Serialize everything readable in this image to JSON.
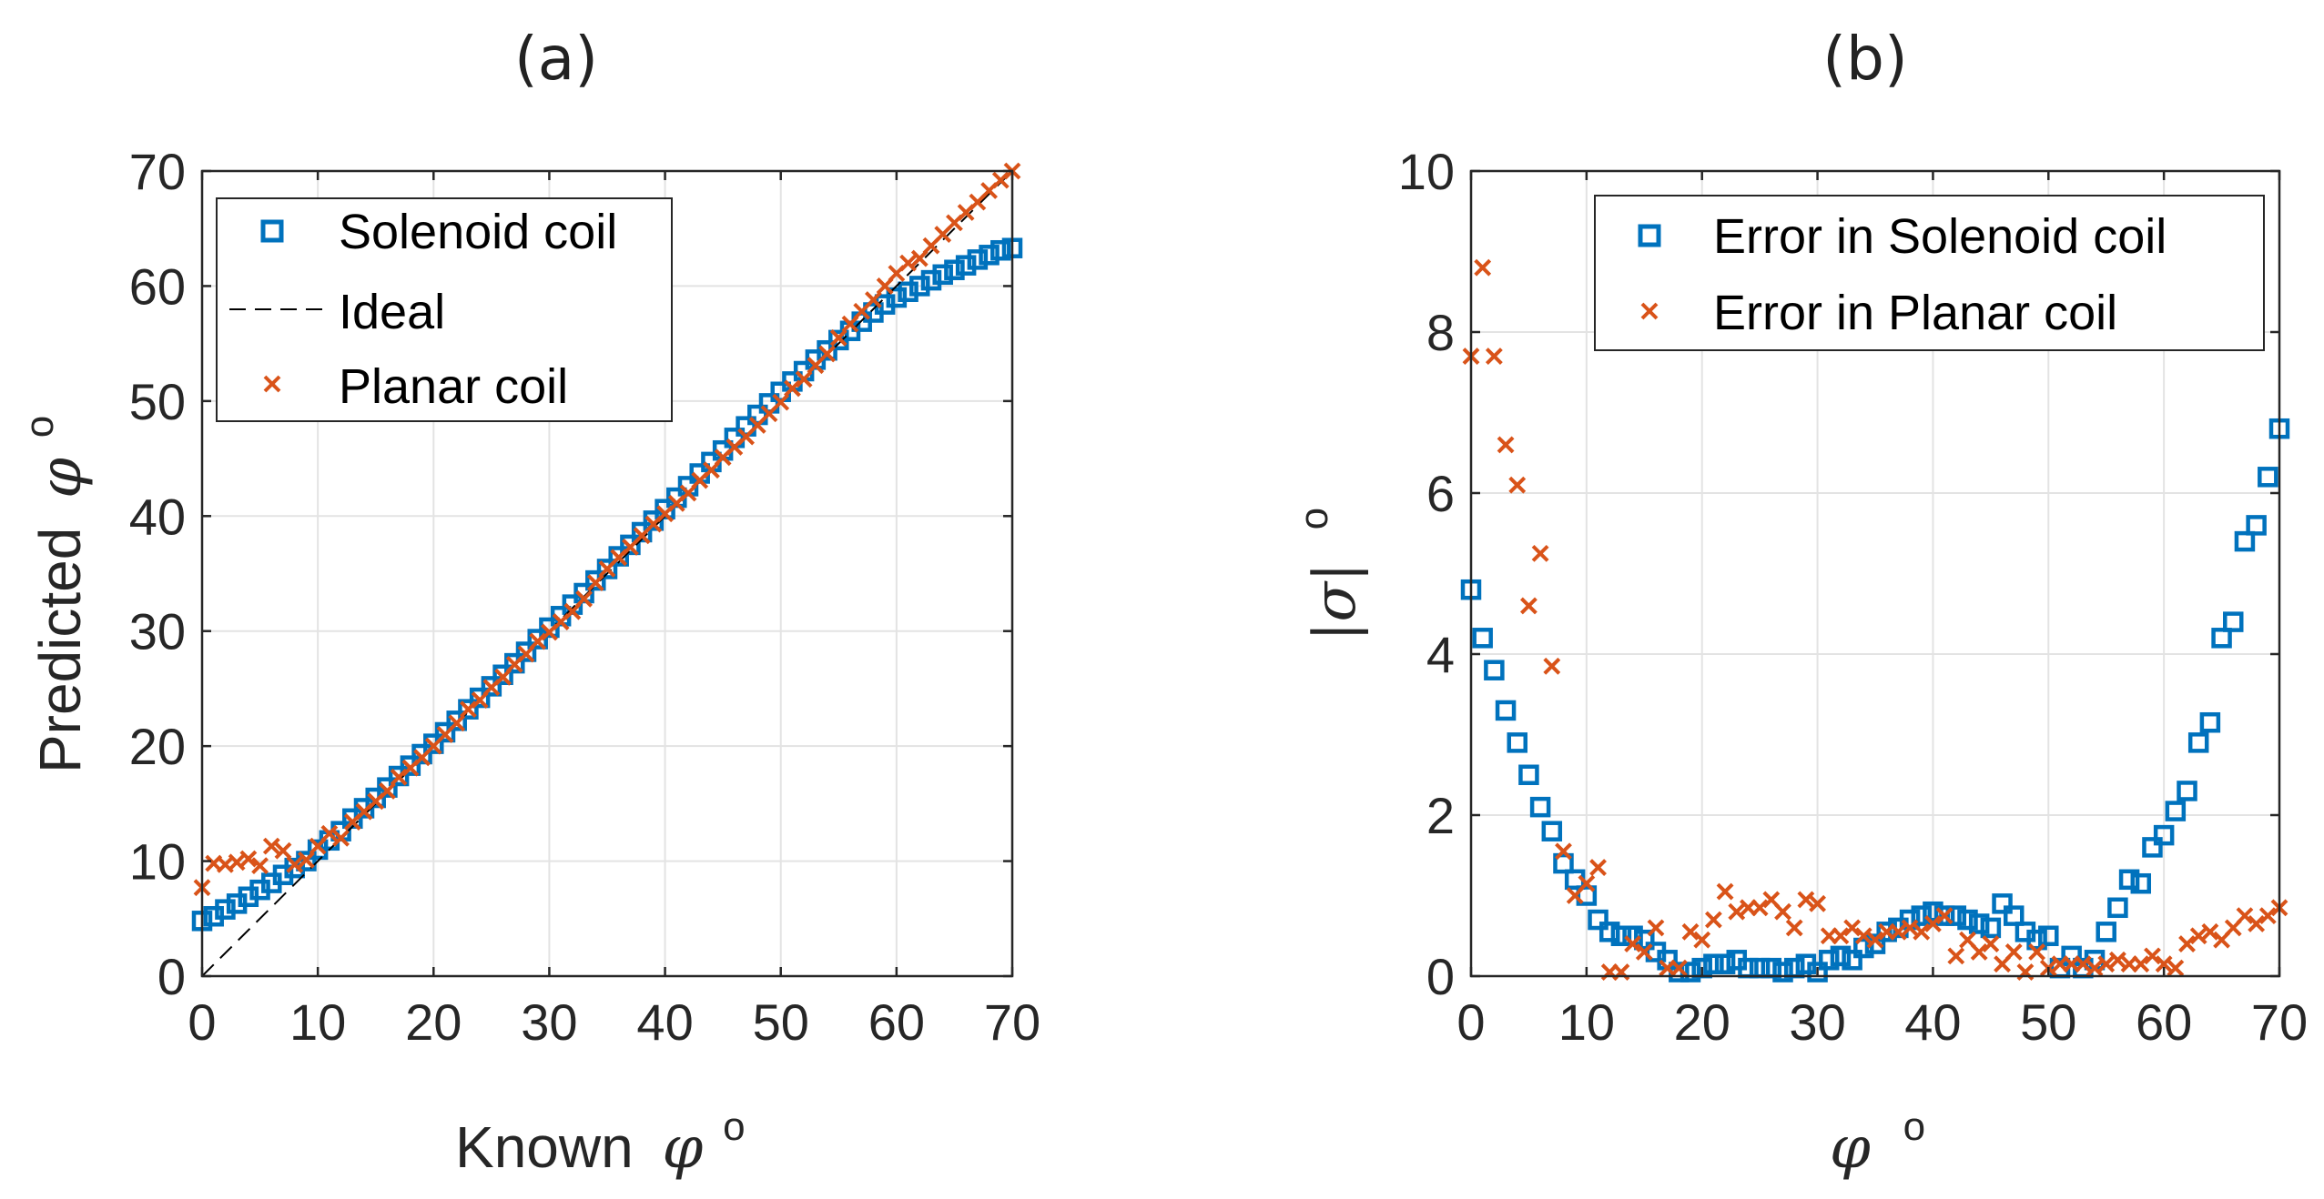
{
  "chart_data": [
    {
      "type": "scatter",
      "panel": "(a)",
      "title": "(a)",
      "xlabel": "Known",
      "xlabel_symbol": "φ",
      "xlabel_sup": "o",
      "ylabel": "Predicted",
      "ylabel_symbol": "φ",
      "ylabel_sup": "o",
      "xlim": [
        0,
        70
      ],
      "ylim": [
        0,
        70
      ],
      "xticks": [
        0,
        10,
        20,
        30,
        40,
        50,
        60,
        70
      ],
      "yticks": [
        0,
        10,
        20,
        30,
        40,
        50,
        60,
        70
      ],
      "grid": true,
      "legend_position": "top-left",
      "legend": [
        "Solenoid coil",
        "Ideal",
        "Planar coil"
      ],
      "series": [
        {
          "name": "Solenoid coil",
          "marker": "square",
          "color": "#0072BD",
          "x": [
            0,
            1,
            2,
            3,
            4,
            5,
            6,
            7,
            8,
            9,
            10,
            11,
            12,
            13,
            14,
            15,
            16,
            17,
            18,
            19,
            20,
            21,
            22,
            23,
            24,
            25,
            26,
            27,
            28,
            29,
            30,
            31,
            32,
            33,
            34,
            35,
            36,
            37,
            38,
            39,
            40,
            41,
            42,
            43,
            44,
            45,
            46,
            47,
            48,
            49,
            50,
            51,
            52,
            53,
            54,
            55,
            56,
            57,
            58,
            59,
            60,
            61,
            62,
            63,
            64,
            65,
            66,
            67,
            68,
            69,
            70
          ],
          "y": [
            4.8,
            5.2,
            5.8,
            6.3,
            6.9,
            7.5,
            8.1,
            8.8,
            9.4,
            10.0,
            11.0,
            11.8,
            12.6,
            13.7,
            14.6,
            15.5,
            16.4,
            17.4,
            18.3,
            19.3,
            20.2,
            21.2,
            22.2,
            23.2,
            24.2,
            25.2,
            26.2,
            27.2,
            28.2,
            29.3,
            30.3,
            31.3,
            32.3,
            33.3,
            34.4,
            35.4,
            36.5,
            37.5,
            38.6,
            39.6,
            40.6,
            41.6,
            42.6,
            43.7,
            44.7,
            45.7,
            46.8,
            47.8,
            48.8,
            49.8,
            50.8,
            51.7,
            52.6,
            53.6,
            54.4,
            55.3,
            56.1,
            56.9,
            57.7,
            58.4,
            59.0,
            59.5,
            60.0,
            60.5,
            61.0,
            61.4,
            61.8,
            62.3,
            62.7,
            63.1,
            63.3
          ]
        },
        {
          "name": "Ideal",
          "marker": "dashed-line",
          "color": "#000000",
          "x": [
            0,
            70
          ],
          "y": [
            0,
            70
          ]
        },
        {
          "name": "Planar coil",
          "marker": "x",
          "color": "#D95319",
          "x": [
            0,
            1,
            2,
            3,
            4,
            5,
            6,
            7,
            8,
            9,
            10,
            11,
            12,
            13,
            14,
            15,
            16,
            17,
            18,
            19,
            20,
            21,
            22,
            23,
            24,
            25,
            26,
            27,
            28,
            29,
            30,
            31,
            32,
            33,
            34,
            35,
            36,
            37,
            38,
            39,
            40,
            41,
            42,
            43,
            44,
            45,
            46,
            47,
            48,
            49,
            50,
            51,
            52,
            53,
            54,
            55,
            56,
            57,
            58,
            59,
            60,
            61,
            62,
            63,
            64,
            65,
            66,
            67,
            68,
            69,
            70
          ],
          "y": [
            7.7,
            9.8,
            9.7,
            9.9,
            10.2,
            9.6,
            11.3,
            10.9,
            9.7,
            10.1,
            11.3,
            12.4,
            12.0,
            13.4,
            14.3,
            15.2,
            16.1,
            17.3,
            18.1,
            19.0,
            20.0,
            21.0,
            22.0,
            23.2,
            24.0,
            25.1,
            26.0,
            27.1,
            28.0,
            29.1,
            29.9,
            30.8,
            31.7,
            32.8,
            34.2,
            35.4,
            36.4,
            37.3,
            38.3,
            39.3,
            40.2,
            41.1,
            42.0,
            43.1,
            44.0,
            45.1,
            46.0,
            46.9,
            47.9,
            48.9,
            49.9,
            51.1,
            51.9,
            53.1,
            54.1,
            55.5,
            56.7,
            57.8,
            58.8,
            60.0,
            61.1,
            62.0,
            62.4,
            63.5,
            64.5,
            65.5,
            66.4,
            67.3,
            68.3,
            69.2,
            70.0
          ]
        }
      ]
    },
    {
      "type": "scatter",
      "panel": "(b)",
      "title": "(b)",
      "xlabel": "",
      "xlabel_symbol": "φ",
      "xlabel_sup": "o",
      "ylabel": "",
      "ylabel_symbol": "|σ|",
      "ylabel_sup": "o",
      "xlim": [
        0,
        70
      ],
      "ylim": [
        0,
        10
      ],
      "xticks": [
        0,
        10,
        20,
        30,
        40,
        50,
        60,
        70
      ],
      "yticks": [
        0,
        2,
        4,
        6,
        8,
        10
      ],
      "grid": true,
      "legend_position": "top-right",
      "legend": [
        "Error in Solenoid coil",
        "Error in Planar coil"
      ],
      "series": [
        {
          "name": "Error in Solenoid coil",
          "marker": "square",
          "color": "#0072BD",
          "x": [
            0,
            1,
            2,
            3,
            4,
            5,
            6,
            7,
            8,
            9,
            10,
            11,
            12,
            13,
            14,
            15,
            16,
            17,
            18,
            19,
            20,
            21,
            22,
            23,
            24,
            25,
            26,
            27,
            28,
            29,
            30,
            31,
            32,
            33,
            34,
            35,
            36,
            37,
            38,
            39,
            40,
            41,
            42,
            43,
            44,
            45,
            46,
            47,
            48,
            49,
            50,
            51,
            52,
            53,
            54,
            55,
            56,
            57,
            58,
            59,
            60,
            61,
            62,
            63,
            64,
            65,
            66,
            67,
            68,
            69,
            70
          ],
          "y": [
            4.8,
            4.2,
            3.8,
            3.3,
            2.9,
            2.5,
            2.1,
            1.8,
            1.4,
            1.2,
            1.0,
            0.7,
            0.55,
            0.5,
            0.5,
            0.45,
            0.3,
            0.2,
            0.05,
            0.05,
            0.1,
            0.15,
            0.15,
            0.2,
            0.1,
            0.1,
            0.1,
            0.05,
            0.1,
            0.15,
            0.05,
            0.2,
            0.25,
            0.2,
            0.35,
            0.4,
            0.55,
            0.6,
            0.7,
            0.75,
            0.8,
            0.75,
            0.75,
            0.7,
            0.65,
            0.6,
            0.9,
            0.75,
            0.55,
            0.45,
            0.5,
            0.1,
            0.25,
            0.1,
            0.2,
            0.55,
            0.85,
            1.2,
            1.15,
            1.6,
            1.75,
            2.05,
            2.3,
            2.9,
            3.15,
            4.2,
            4.4,
            5.4,
            5.6,
            6.2,
            6.8
          ]
        },
        {
          "name": "Error in Planar coil",
          "marker": "x",
          "color": "#D95319",
          "x": [
            0,
            1,
            2,
            3,
            4,
            5,
            6,
            7,
            8,
            9,
            10,
            11,
            12,
            13,
            14,
            15,
            16,
            17,
            18,
            19,
            20,
            21,
            22,
            23,
            24,
            25,
            26,
            27,
            28,
            29,
            30,
            31,
            32,
            33,
            34,
            35,
            36,
            37,
            38,
            39,
            40,
            41,
            42,
            43,
            44,
            45,
            46,
            47,
            48,
            49,
            50,
            51,
            52,
            53,
            54,
            55,
            56,
            57,
            58,
            59,
            60,
            61,
            62,
            63,
            64,
            65,
            66,
            67,
            68,
            69,
            70
          ],
          "y": [
            7.7,
            8.8,
            7.7,
            6.6,
            6.1,
            4.6,
            5.25,
            3.85,
            1.55,
            1.0,
            1.15,
            1.35,
            0.05,
            0.05,
            0.4,
            0.3,
            0.6,
            0.1,
            0.1,
            0.55,
            0.45,
            0.7,
            1.05,
            0.8,
            0.85,
            0.85,
            0.95,
            0.8,
            0.6,
            0.95,
            0.9,
            0.5,
            0.5,
            0.6,
            0.5,
            0.45,
            0.55,
            0.55,
            0.6,
            0.55,
            0.65,
            0.75,
            0.25,
            0.45,
            0.3,
            0.4,
            0.15,
            0.3,
            0.05,
            0.3,
            0.1,
            0.15,
            0.15,
            0.15,
            0.1,
            0.15,
            0.2,
            0.15,
            0.15,
            0.25,
            0.15,
            0.1,
            0.4,
            0.5,
            0.55,
            0.45,
            0.6,
            0.75,
            0.65,
            0.75,
            0.85
          ]
        }
      ]
    }
  ]
}
